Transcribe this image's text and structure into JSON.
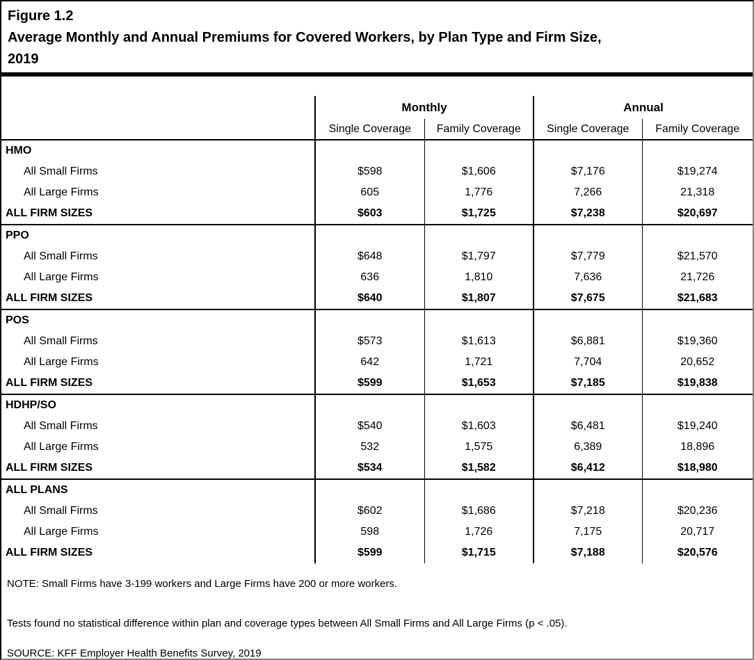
{
  "figure": {
    "label": "Figure 1.2",
    "title_lines": [
      "Average Monthly and Annual Premiums for Covered Workers, by Plan Type and Firm Size,",
      "2019"
    ]
  },
  "table": {
    "col_groups": [
      "Monthly",
      "Annual"
    ],
    "sub_headers": [
      "Single Coverage",
      "Family Coverage",
      "Single Coverage",
      "Family Coverage"
    ],
    "groups": [
      {
        "plan": "HMO",
        "rows": [
          {
            "label": "All Small Firms",
            "bold": false,
            "values": [
              "$598",
              "$1,606",
              "$7,176",
              "$19,274"
            ]
          },
          {
            "label": "All Large Firms",
            "bold": false,
            "values": [
              "605",
              "1,776",
              "7,266",
              "21,318"
            ]
          },
          {
            "label": "ALL FIRM SIZES",
            "bold": true,
            "values": [
              "$603",
              "$1,725",
              "$7,238",
              "$20,697"
            ]
          }
        ]
      },
      {
        "plan": "PPO",
        "rows": [
          {
            "label": "All Small Firms",
            "bold": false,
            "values": [
              "$648",
              "$1,797",
              "$7,779",
              "$21,570"
            ]
          },
          {
            "label": "All Large Firms",
            "bold": false,
            "values": [
              "636",
              "1,810",
              "7,636",
              "21,726"
            ]
          },
          {
            "label": "ALL FIRM SIZES",
            "bold": true,
            "values": [
              "$640",
              "$1,807",
              "$7,675",
              "$21,683"
            ]
          }
        ]
      },
      {
        "plan": "POS",
        "rows": [
          {
            "label": "All Small Firms",
            "bold": false,
            "values": [
              "$573",
              "$1,613",
              "$6,881",
              "$19,360"
            ]
          },
          {
            "label": "All Large Firms",
            "bold": false,
            "values": [
              "642",
              "1,721",
              "7,704",
              "20,652"
            ]
          },
          {
            "label": "ALL FIRM SIZES",
            "bold": true,
            "values": [
              "$599",
              "$1,653",
              "$7,185",
              "$19,838"
            ]
          }
        ]
      },
      {
        "plan": "HDHP/SO",
        "rows": [
          {
            "label": "All Small Firms",
            "bold": false,
            "values": [
              "$540",
              "$1,603",
              "$6,481",
              "$19,240"
            ]
          },
          {
            "label": "All Large Firms",
            "bold": false,
            "values": [
              "532",
              "1,575",
              "6,389",
              "18,896"
            ]
          },
          {
            "label": "ALL FIRM SIZES",
            "bold": true,
            "values": [
              "$534",
              "$1,582",
              "$6,412",
              "$18,980"
            ]
          }
        ]
      },
      {
        "plan": "ALL PLANS",
        "rows": [
          {
            "label": "All Small Firms",
            "bold": false,
            "values": [
              "$602",
              "$1,686",
              "$7,218",
              "$20,236"
            ]
          },
          {
            "label": "All Large Firms",
            "bold": false,
            "values": [
              "598",
              "1,726",
              "7,175",
              "20,717"
            ]
          },
          {
            "label": "ALL FIRM SIZES",
            "bold": true,
            "values": [
              "$599",
              "$1,715",
              "$7,188",
              "$20,576"
            ]
          }
        ]
      }
    ]
  },
  "notes": {
    "note": "NOTE: Small Firms have 3-199 workers and Large Firms have 200 or more workers.",
    "tests": "Tests found no statistical difference within plan and coverage types between All Small Firms and All Large Firms (p < .05).",
    "source": "SOURCE: KFF Employer Health Benefits Survey, 2019"
  },
  "chart_data": {
    "type": "table",
    "title": "Average Monthly and Annual Premiums for Covered Workers, by Plan Type and Firm Size, 2019",
    "column_groups": [
      "Monthly",
      "Annual"
    ],
    "columns": [
      "Monthly Single Coverage",
      "Monthly Family Coverage",
      "Annual Single Coverage",
      "Annual Family Coverage"
    ],
    "rows": [
      {
        "plan": "HMO",
        "firm_size": "All Small Firms",
        "values": [
          598,
          1606,
          7176,
          19274
        ]
      },
      {
        "plan": "HMO",
        "firm_size": "All Large Firms",
        "values": [
          605,
          1776,
          7266,
          21318
        ]
      },
      {
        "plan": "HMO",
        "firm_size": "ALL FIRM SIZES",
        "values": [
          603,
          1725,
          7238,
          20697
        ]
      },
      {
        "plan": "PPO",
        "firm_size": "All Small Firms",
        "values": [
          648,
          1797,
          7779,
          21570
        ]
      },
      {
        "plan": "PPO",
        "firm_size": "All Large Firms",
        "values": [
          636,
          1810,
          7636,
          21726
        ]
      },
      {
        "plan": "PPO",
        "firm_size": "ALL FIRM SIZES",
        "values": [
          640,
          1807,
          7675,
          21683
        ]
      },
      {
        "plan": "POS",
        "firm_size": "All Small Firms",
        "values": [
          573,
          1613,
          6881,
          19360
        ]
      },
      {
        "plan": "POS",
        "firm_size": "All Large Firms",
        "values": [
          642,
          1721,
          7704,
          20652
        ]
      },
      {
        "plan": "POS",
        "firm_size": "ALL FIRM SIZES",
        "values": [
          599,
          1653,
          7185,
          19838
        ]
      },
      {
        "plan": "HDHP/SO",
        "firm_size": "All Small Firms",
        "values": [
          540,
          1603,
          6481,
          19240
        ]
      },
      {
        "plan": "HDHP/SO",
        "firm_size": "All Large Firms",
        "values": [
          532,
          1575,
          6389,
          18896
        ]
      },
      {
        "plan": "HDHP/SO",
        "firm_size": "ALL FIRM SIZES",
        "values": [
          534,
          1582,
          6412,
          18980
        ]
      },
      {
        "plan": "ALL PLANS",
        "firm_size": "All Small Firms",
        "values": [
          602,
          1686,
          7218,
          20236
        ]
      },
      {
        "plan": "ALL PLANS",
        "firm_size": "All Large Firms",
        "values": [
          598,
          1726,
          7175,
          20717
        ]
      },
      {
        "plan": "ALL PLANS",
        "firm_size": "ALL FIRM SIZES",
        "values": [
          599,
          1715,
          7188,
          20576
        ]
      }
    ]
  }
}
